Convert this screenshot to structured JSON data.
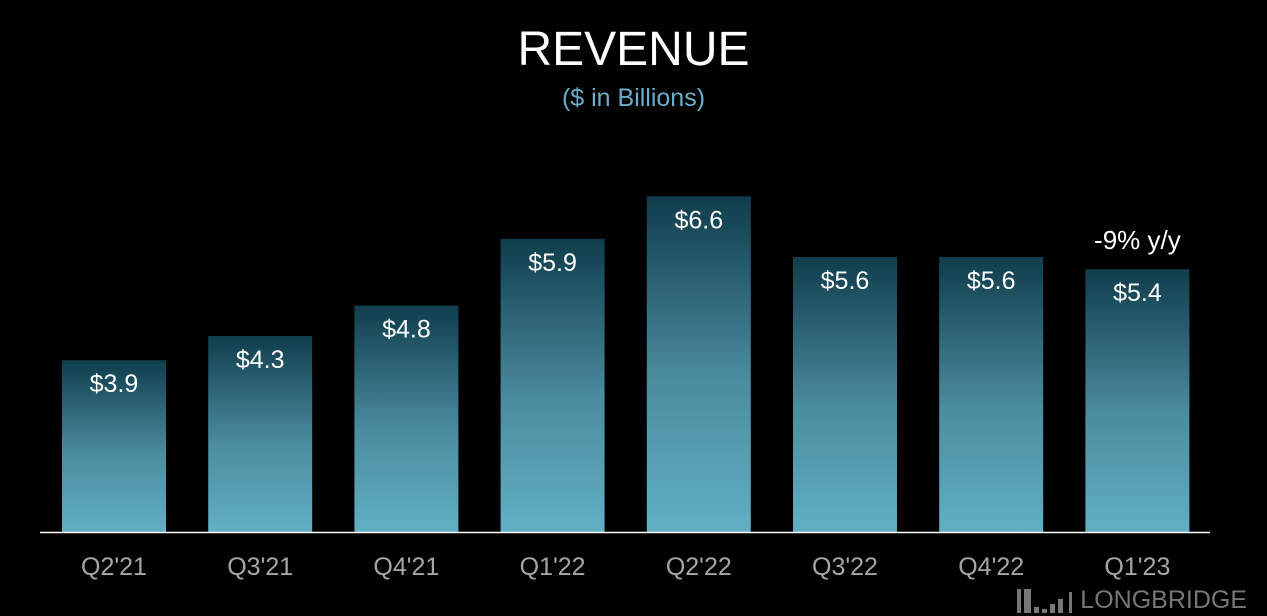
{
  "chart_data": {
    "type": "bar",
    "title": "REVENUE",
    "subtitle": "($ in Billions)",
    "categories": [
      "Q2'21",
      "Q3'21",
      "Q4'21",
      "Q1'22",
      "Q2'22",
      "Q3'22",
      "Q4'22",
      "Q1'23"
    ],
    "values": [
      3.9,
      4.3,
      4.8,
      5.9,
      6.6,
      5.6,
      5.6,
      5.4
    ],
    "data_labels": [
      "$3.9",
      "$4.3",
      "$4.8",
      "$5.9",
      "$6.6",
      "$5.6",
      "$5.6",
      "$5.4"
    ],
    "annotations": [
      {
        "category": "Q1'23",
        "text": "-9% y/y"
      }
    ],
    "xlabel": "",
    "ylabel": "",
    "grid": false,
    "legend": "none",
    "colors": {
      "bar_top": "#0f3d4c",
      "bar_bottom": "#62afc4",
      "subtitle": "#6aaecb",
      "background": "#000000"
    }
  },
  "watermark": "LONGBRIDGE"
}
